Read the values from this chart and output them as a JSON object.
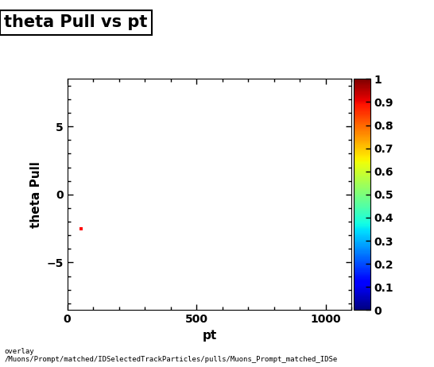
{
  "title": "theta Pull vs pt",
  "xlabel": "pt",
  "ylabel": "theta Pull",
  "xlim": [
    0,
    1100
  ],
  "ylim": [
    -8.5,
    8.5
  ],
  "xticks": [
    0,
    500,
    1000
  ],
  "yticks": [
    -5,
    0,
    5
  ],
  "data_point_x": 52,
  "data_point_y": -2.5,
  "data_point_color": "#ff0000",
  "colorbar_min": 0,
  "colorbar_max": 1,
  "colorbar_ticks": [
    0,
    0.1,
    0.2,
    0.3,
    0.4,
    0.5,
    0.6,
    0.7,
    0.8,
    0.9,
    1.0
  ],
  "colorbar_tick_labels": [
    "0",
    "0.1",
    "0.2",
    "0.3",
    "0.4",
    "0.5",
    "0.6",
    "0.7",
    "0.8",
    "0.9",
    "1"
  ],
  "footer_line1": "overlay",
  "footer_line2": "/Muons/Prompt/matched/IDSelectedTrackParticles/pulls/Muons_Prompt_matched_IDSe",
  "background_color": "#ffffff",
  "title_fontsize": 15,
  "axis_label_fontsize": 11,
  "tick_fontsize": 10,
  "colorbar_tick_fontsize": 10
}
